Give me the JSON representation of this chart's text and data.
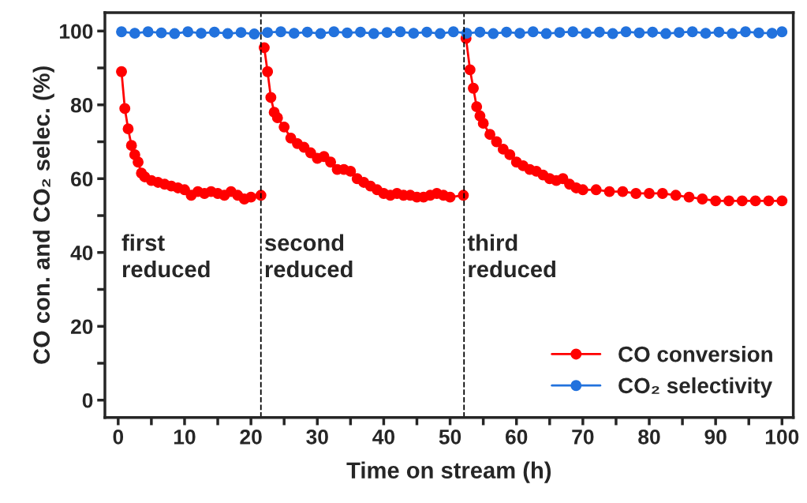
{
  "chart_data": {
    "type": "line",
    "xlabel": "Time on stream (h)",
    "ylabel": "CO con. and CO₂ selec. (%)",
    "xlim": [
      -2,
      101.7
    ],
    "ylim": [
      -4.7,
      105
    ],
    "xticks": [
      0,
      {
        "value": 5,
        "label": null
      },
      10,
      {
        "value": 15,
        "label": null
      },
      20,
      {
        "value": 25,
        "label": null
      },
      30,
      {
        "value": 35,
        "label": null
      },
      40,
      {
        "value": 45,
        "label": null
      },
      50,
      {
        "value": 55,
        "label": null
      },
      60,
      {
        "value": 65,
        "label": null
      },
      70,
      {
        "value": 75,
        "label": null
      },
      80,
      {
        "value": 85,
        "label": null
      },
      90,
      {
        "value": 95,
        "label": null
      },
      100
    ],
    "yticks": [
      0,
      {
        "value": 10,
        "label": null
      },
      20,
      {
        "value": 30,
        "label": null
      },
      40,
      {
        "value": 50,
        "label": null
      },
      60,
      {
        "value": 70,
        "label": null
      },
      80,
      {
        "value": 90,
        "label": null
      },
      100
    ],
    "marker": "circle",
    "line_style": "solid",
    "grid": false,
    "legend": "bottom right",
    "ref_lines": [
      {
        "axis": "x",
        "value": 21.5,
        "color": "#000000",
        "line_style": "dashed"
      },
      {
        "axis": "x",
        "value": 52.1,
        "color": "#000000",
        "line_style": "dashed"
      }
    ],
    "annotations": [
      "first\nreduced",
      "second\nreduced",
      "third\nreduced"
    ],
    "series": [
      {
        "name": "CO conversion",
        "color": "#ff0000",
        "x": [
          0.5,
          1,
          1.5,
          2,
          2.5,
          3,
          3.5,
          4,
          5,
          6,
          7,
          8,
          9,
          10,
          11,
          12,
          13,
          14,
          15,
          16,
          17,
          18,
          19,
          20,
          21.5,
          null,
          22,
          22.5,
          23,
          23.5,
          24,
          25,
          26,
          27,
          28,
          29,
          30,
          31,
          32,
          33,
          34,
          35,
          36,
          37,
          38,
          39,
          40,
          41,
          42,
          43,
          44,
          45,
          46,
          47,
          48,
          49,
          50,
          52,
          null,
          52.4,
          53,
          53.5,
          54,
          54.5,
          55,
          56,
          57,
          58,
          59,
          60,
          61,
          62,
          63,
          64,
          65,
          66,
          67,
          68,
          69,
          70,
          72,
          74,
          76,
          78,
          80,
          82,
          84,
          86,
          88,
          90,
          92,
          94,
          96,
          98,
          100
        ],
        "values": [
          89,
          79,
          73.5,
          69,
          66.5,
          64.5,
          61.5,
          60.5,
          59.5,
          59,
          58.5,
          58,
          57.5,
          57,
          55.5,
          56.5,
          56,
          56.5,
          56,
          55.5,
          56.5,
          55.5,
          54.5,
          55,
          55.5,
          null,
          95.5,
          89,
          82,
          78,
          76.5,
          74,
          71,
          69.5,
          68.5,
          67,
          65.5,
          66,
          64.5,
          62.5,
          62.5,
          62,
          60,
          59,
          58,
          57,
          56,
          55.5,
          56,
          55.5,
          55.5,
          55,
          55,
          55.5,
          56,
          55.5,
          55,
          55.5,
          null,
          98,
          89.5,
          84.5,
          79.5,
          77,
          75,
          72,
          70,
          68,
          66.5,
          64.5,
          63.5,
          62.5,
          62,
          61,
          60,
          59.5,
          60,
          58.5,
          57.5,
          57,
          57,
          56.5,
          56.5,
          56,
          56,
          56,
          55.5,
          55,
          54.5,
          54,
          54,
          54,
          54,
          54,
          54
        ]
      },
      {
        "name": "CO₂ selectivity",
        "color": "#2272dd",
        "x": [
          0.5,
          2.5,
          4.5,
          6.5,
          8.5,
          10.5,
          12.5,
          14.5,
          16.5,
          18.5,
          20.5,
          22.5,
          24.5,
          26.5,
          28.5,
          30.5,
          32.5,
          34.5,
          36.5,
          38.5,
          40.5,
          42.5,
          44.5,
          46.5,
          48.5,
          50.5,
          52.5,
          54.5,
          56.5,
          58.5,
          60.5,
          62.5,
          64.5,
          66.5,
          68.5,
          70.5,
          72.5,
          74.5,
          76.5,
          78.5,
          80.5,
          82.5,
          84.5,
          86.5,
          88.5,
          90.5,
          92.5,
          94.5,
          96.5,
          98.5,
          100
        ],
        "values": [
          99.8,
          99.4,
          99.8,
          99.5,
          99.3,
          99.8,
          99.4,
          99.7,
          99.3,
          99.6,
          99.2,
          99.6,
          99.8,
          99.4,
          99.7,
          99.3,
          99.8,
          99.5,
          99.7,
          99.3,
          99.6,
          99.8,
          99.4,
          99.7,
          99.3,
          99.8,
          99.4,
          99.7,
          99.3,
          99.7,
          99.4,
          99.8,
          99.3,
          99.6,
          99.8,
          99.4,
          99.7,
          99.3,
          99.8,
          99.5,
          99.7,
          99.3,
          99.6,
          99.8,
          99.4,
          99.7,
          99.3,
          99.8,
          99.5,
          99.4,
          99.8
        ]
      }
    ]
  }
}
